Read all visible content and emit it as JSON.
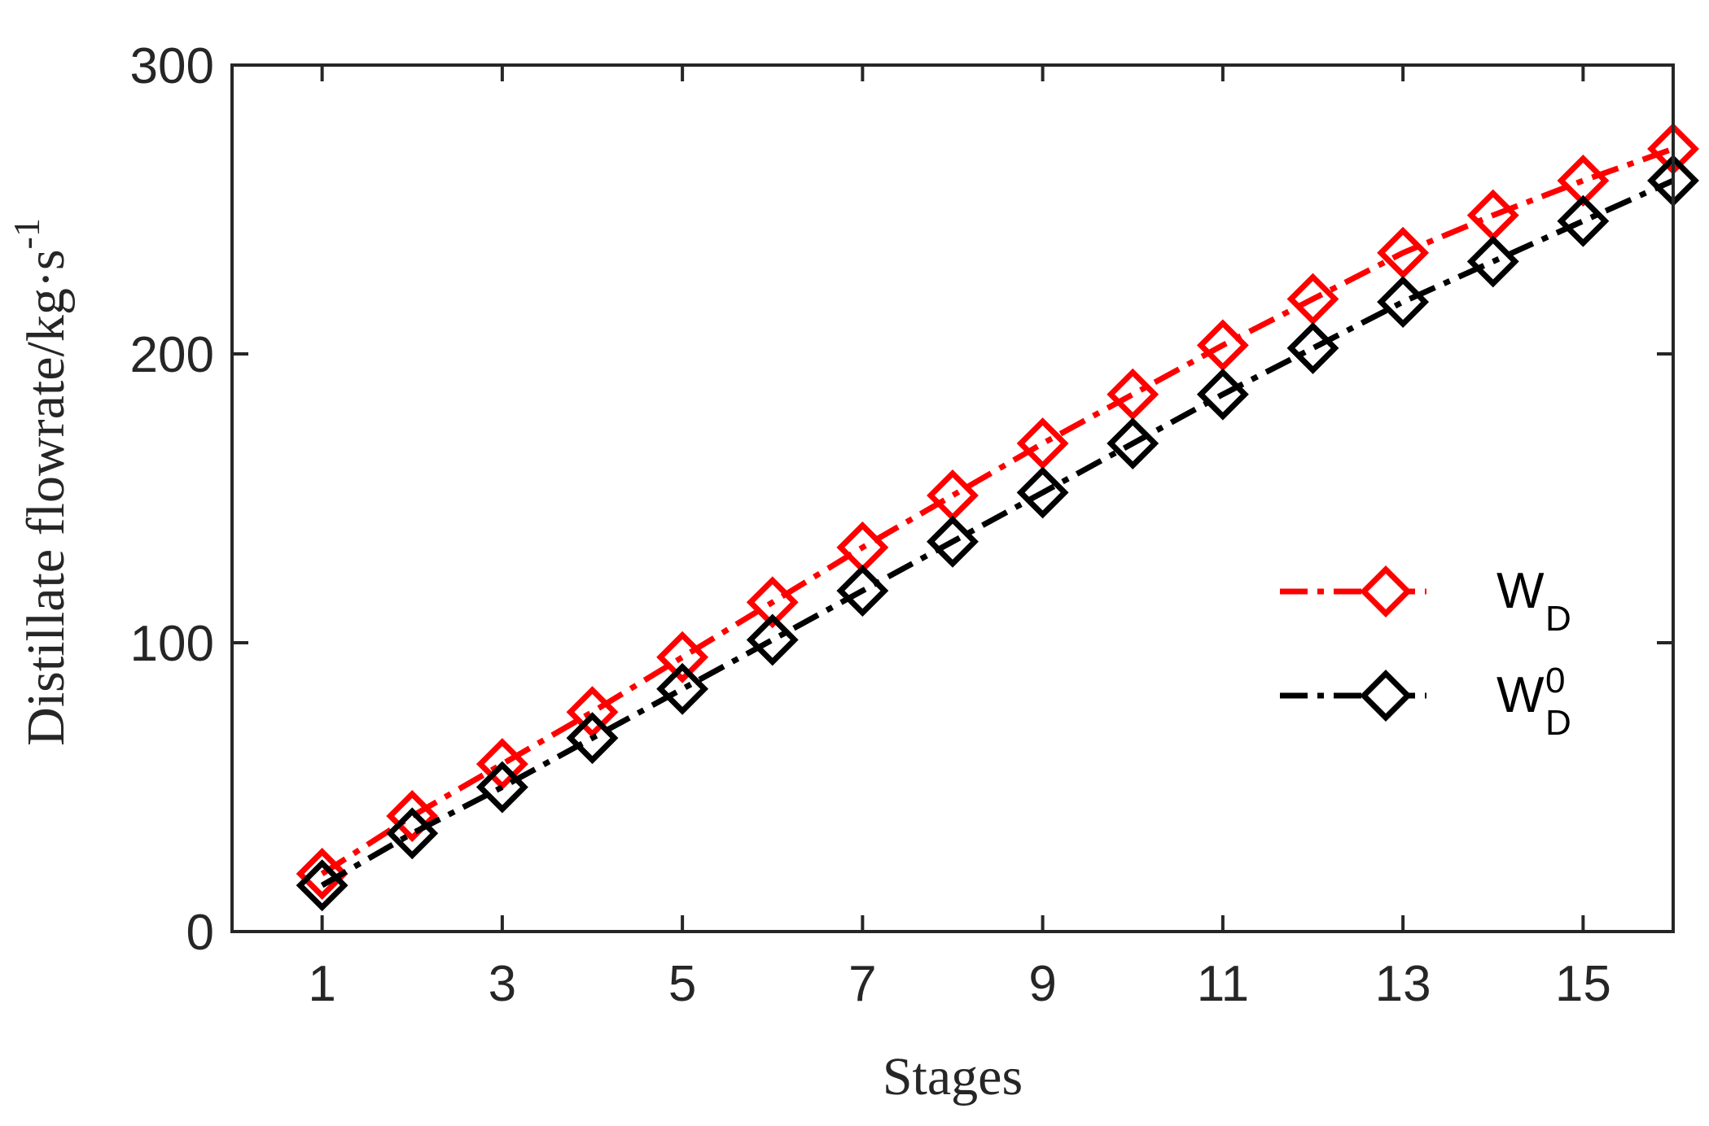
{
  "chart_data": {
    "type": "line",
    "title": "",
    "xlabel": "Stages",
    "ylabel": {
      "main": "Distillate flowrate/kg·s",
      "exponent": "-1"
    },
    "xlim": [
      0,
      16
    ],
    "ylim": [
      0,
      300
    ],
    "xticks": [
      1,
      3,
      5,
      7,
      9,
      11,
      13,
      15
    ],
    "yticks": [
      0,
      100,
      200,
      300
    ],
    "grid": false,
    "legend_position": "right",
    "x": [
      1,
      2,
      3,
      4,
      5,
      6,
      7,
      8,
      9,
      10,
      11,
      12,
      13,
      14,
      15,
      16
    ],
    "series": [
      {
        "label": {
          "base": "W",
          "sub": "D",
          "sup": ""
        },
        "color": "#ff0000",
        "line_style": "dash-dot",
        "marker": "diamond",
        "values": [
          20,
          40,
          58,
          76,
          95,
          114,
          133,
          151,
          169,
          186,
          203,
          219,
          235,
          248,
          260,
          271
        ]
      },
      {
        "label": {
          "base": "W",
          "sub": "D",
          "sup": "0"
        },
        "color": "#000000",
        "line_style": "dash-dot",
        "marker": "diamond",
        "values": [
          16,
          34,
          50,
          67,
          84,
          101,
          118,
          135,
          152,
          169,
          186,
          202,
          218,
          232,
          246,
          260
        ]
      }
    ]
  }
}
